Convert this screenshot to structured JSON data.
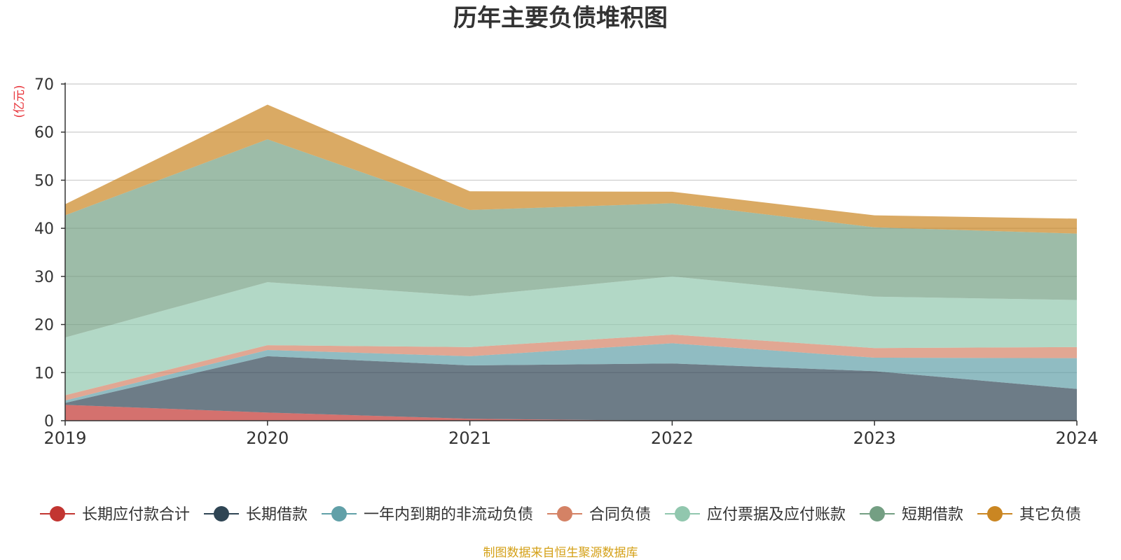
{
  "chart_data": {
    "type": "area",
    "stacked": true,
    "title": "历年主要负债堆积图",
    "ylabel": "(亿元)",
    "xlabel": "",
    "source_note": "制图数据来自恒生聚源数据库",
    "x": [
      "2019",
      "2020",
      "2021",
      "2022",
      "2023",
      "2024"
    ],
    "ylim": [
      0,
      70
    ],
    "yticks": [
      0,
      10,
      20,
      30,
      40,
      50,
      60,
      70
    ],
    "grid": true,
    "legend_position": "bottom",
    "series": [
      {
        "name": "长期应付款合计",
        "color": "#c23531",
        "values": [
          3.3,
          1.7,
          0.4,
          0.0,
          0.0,
          0.0
        ]
      },
      {
        "name": "长期借款",
        "color": "#2f4554",
        "values": [
          0.4,
          11.7,
          11.1,
          11.9,
          10.3,
          6.6
        ]
      },
      {
        "name": "一年内到期的非流动负债",
        "color": "#61a0a8",
        "values": [
          0.5,
          1.3,
          1.9,
          4.2,
          2.8,
          6.4
        ]
      },
      {
        "name": "合同负债",
        "color": "#d48265",
        "values": [
          1.1,
          1.0,
          1.9,
          1.8,
          2.0,
          2.3
        ]
      },
      {
        "name": "应付票据及应付账款",
        "color": "#91c7ae",
        "values": [
          12.0,
          13.1,
          10.6,
          12.1,
          10.7,
          9.8
        ]
      },
      {
        "name": "短期借款",
        "color": "#749f83",
        "values": [
          25.4,
          29.7,
          17.9,
          15.2,
          14.4,
          13.8
        ]
      },
      {
        "name": "其它负债",
        "color": "#ca8622",
        "values": [
          2.3,
          7.2,
          3.9,
          2.4,
          2.5,
          3.1
        ]
      }
    ]
  }
}
